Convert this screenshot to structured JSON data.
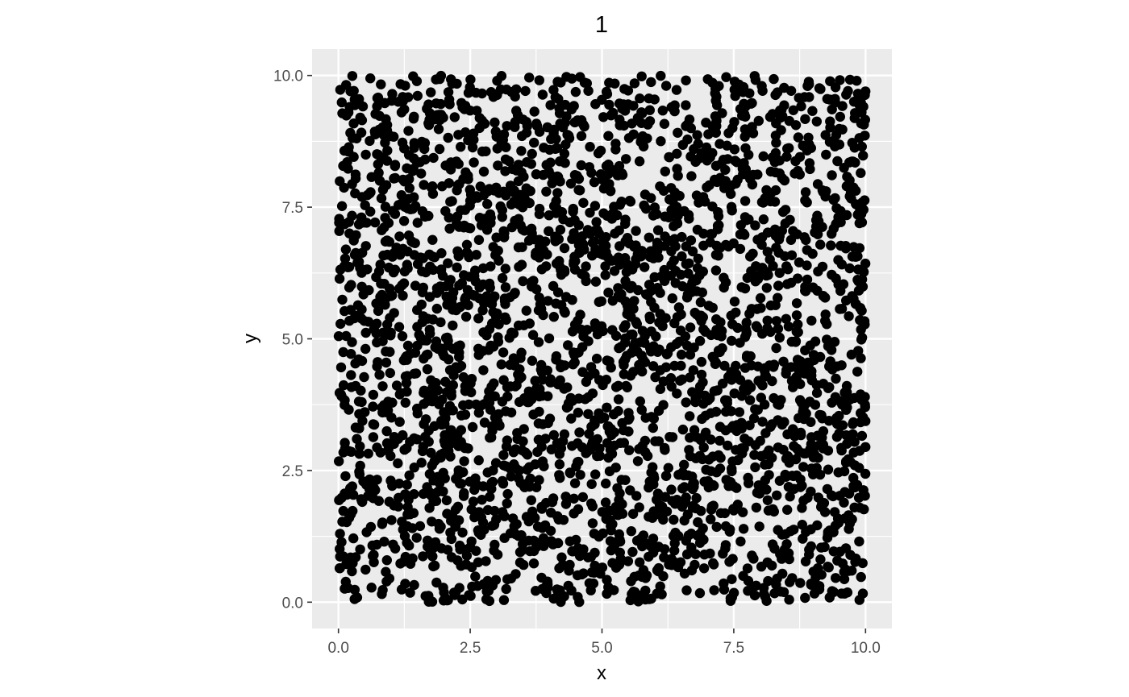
{
  "chart_data": {
    "type": "scatter",
    "title": "1",
    "xlabel": "x",
    "ylabel": "y",
    "xlim": [
      -0.5,
      10.5
    ],
    "ylim": [
      -0.5,
      10.5
    ],
    "x_ticks": [
      0.0,
      2.5,
      5.0,
      7.5,
      10.0
    ],
    "y_ticks": [
      0.0,
      2.5,
      5.0,
      7.5,
      10.0
    ],
    "x_tick_labels": [
      "0.0",
      "2.5",
      "5.0",
      "7.5",
      "10.0"
    ],
    "y_tick_labels": [
      "0.0",
      "2.5",
      "5.0",
      "7.5",
      "10.0"
    ],
    "grid": true,
    "point_count": 3000,
    "distribution": "uniform random over x 0–10, y 0–10 (values not individually readable)",
    "colors": {
      "point": "#000000",
      "panel_background": "#ebebeb",
      "grid": "#ffffff",
      "tick_label": "#4d4d4d"
    }
  }
}
